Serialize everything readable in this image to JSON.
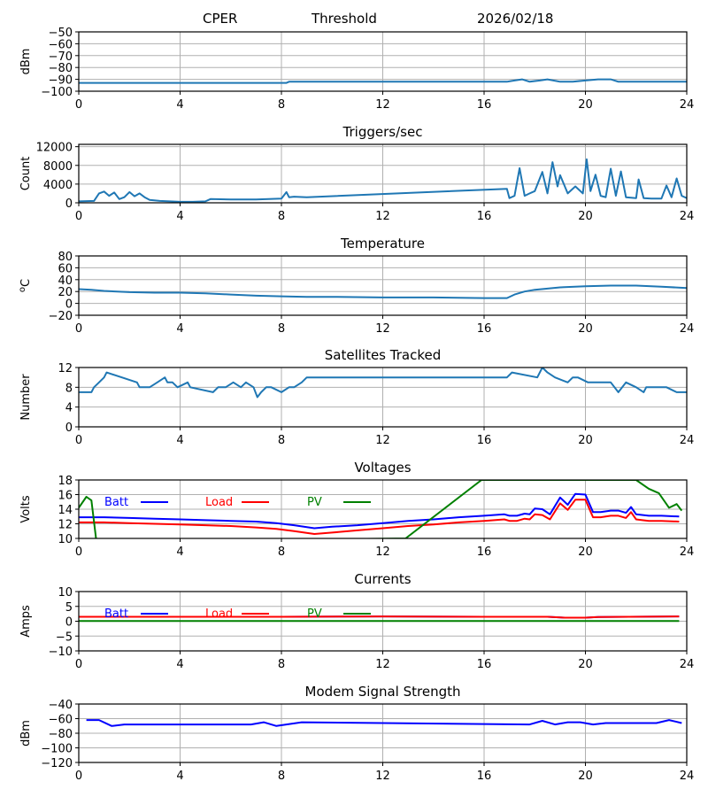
{
  "header": {
    "station": "CPER",
    "mode": "Threshold",
    "date": "2026/02/18"
  },
  "colors": {
    "default": "#1f77b4",
    "batt": "#0000ff",
    "load": "#ff0000",
    "pv": "#008000",
    "grid": "#b0b0b0"
  },
  "chart_data": [
    {
      "type": "line",
      "title": "",
      "xlabel": "",
      "ylabel": "dBm",
      "xlim": [
        0,
        24
      ],
      "ylim": [
        -100,
        -50
      ],
      "grid": true,
      "xticks": [
        "0",
        "4",
        "8",
        "12",
        "16",
        "20",
        "24"
      ],
      "yticks": [
        "-100",
        "-90",
        "-80",
        "-70",
        "-60",
        "-50"
      ],
      "series": [
        {
          "name": "Threshold",
          "color": "#1f77b4",
          "x": [
            0,
            8.2,
            8.3,
            8.5,
            16.9,
            17.2,
            17.5,
            17.8,
            18.2,
            18.5,
            19.0,
            19.5,
            20.0,
            20.5,
            21.0,
            21.3,
            24
          ],
          "y": [
            -93,
            -93,
            -92,
            -92,
            -92,
            -91,
            -90,
            -92,
            -91,
            -90,
            -92,
            -92,
            -91,
            -90,
            -90,
            -92,
            -92
          ]
        }
      ]
    },
    {
      "type": "line",
      "title": "Triggers/sec",
      "xlabel": "",
      "ylabel": "Count",
      "xlim": [
        0,
        24
      ],
      "ylim": [
        0,
        12500
      ],
      "grid": true,
      "xticks": [
        "0",
        "4",
        "8",
        "12",
        "16",
        "20",
        "24"
      ],
      "yticks": [
        "0",
        "4000",
        "8000",
        "12000"
      ],
      "series": [
        {
          "name": "Triggers",
          "color": "#1f77b4",
          "x": [
            0,
            0.6,
            0.8,
            1.0,
            1.2,
            1.4,
            1.6,
            1.8,
            2.0,
            2.2,
            2.4,
            2.6,
            2.8,
            3.2,
            3.6,
            4.0,
            4.5,
            5.0,
            5.2,
            6.0,
            7.0,
            8.0,
            8.2,
            8.3,
            8.5,
            9.0,
            16.9,
            17.0,
            17.2,
            17.4,
            17.6,
            17.8,
            18.0,
            18.3,
            18.5,
            18.7,
            18.9,
            19.0,
            19.3,
            19.6,
            19.9,
            20.05,
            20.2,
            20.4,
            20.6,
            20.8,
            21.0,
            21.2,
            21.4,
            21.6,
            21.8,
            22.0,
            22.1,
            22.3,
            22.6,
            23.0,
            23.2,
            23.4,
            23.6,
            23.8,
            24
          ],
          "y": [
            300,
            400,
            2000,
            2400,
            1500,
            2200,
            800,
            1200,
            2300,
            1400,
            2000,
            1200,
            600,
            400,
            300,
            200,
            200,
            300,
            800,
            700,
            700,
            900,
            2300,
            1200,
            1300,
            1200,
            3000,
            1000,
            1500,
            7400,
            1500,
            2000,
            2500,
            6600,
            2000,
            8700,
            3500,
            5900,
            2000,
            3500,
            2000,
            9300,
            2500,
            6000,
            1500,
            1200,
            7300,
            1500,
            6700,
            1200,
            1100,
            1000,
            5000,
            1000,
            900,
            900,
            3700,
            1200,
            5200,
            1500,
            1000
          ]
        }
      ]
    },
    {
      "type": "line",
      "title": "Temperature",
      "xlabel": "",
      "ylabel": "oC",
      "xlim": [
        0,
        24
      ],
      "ylim": [
        -20,
        80
      ],
      "grid": true,
      "xticks": [
        "0",
        "4",
        "8",
        "12",
        "16",
        "20",
        "24"
      ],
      "yticks": [
        "-20",
        "0",
        "20",
        "40",
        "60",
        "80"
      ],
      "series": [
        {
          "name": "Temperature",
          "color": "#1f77b4",
          "x": [
            0,
            0.5,
            1,
            2,
            3,
            4,
            5,
            6,
            7,
            8,
            9,
            10,
            12,
            14,
            16,
            16.9,
            17.2,
            17.6,
            18,
            18.5,
            19,
            20,
            21,
            22,
            23,
            24
          ],
          "y": [
            24,
            23,
            21,
            19,
            18,
            18,
            17,
            15,
            13,
            12,
            11,
            11,
            10,
            10,
            9,
            9,
            15,
            20,
            23,
            25,
            27,
            29,
            30,
            30,
            28,
            26
          ]
        }
      ]
    },
    {
      "type": "line",
      "title": "Satellites Tracked",
      "xlabel": "",
      "ylabel": "Number",
      "xlim": [
        0,
        24
      ],
      "ylim": [
        0,
        12
      ],
      "grid": true,
      "xticks": [
        "0",
        "4",
        "8",
        "12",
        "16",
        "20",
        "24"
      ],
      "yticks": [
        "0",
        "4",
        "8",
        "12"
      ],
      "series": [
        {
          "name": "Satellites",
          "color": "#1f77b4",
          "x": [
            0,
            0.5,
            0.6,
            0.8,
            1.0,
            1.1,
            1.7,
            2.3,
            2.4,
            2.8,
            3.1,
            3.4,
            3.5,
            3.7,
            3.9,
            4.3,
            4.4,
            5.3,
            5.5,
            5.8,
            6.1,
            6.4,
            6.6,
            6.9,
            7.05,
            7.2,
            7.4,
            7.6,
            8.0,
            8.3,
            8.5,
            8.8,
            9.0,
            16.9,
            17.1,
            18.1,
            18.3,
            18.5,
            18.8,
            19.3,
            19.5,
            19.7,
            20.1,
            21.0,
            21.3,
            21.6,
            22.0,
            22.3,
            22.4,
            23.2,
            23.6,
            24
          ],
          "y": [
            7,
            7,
            8,
            9,
            10,
            11,
            10,
            9,
            8,
            8,
            9,
            10,
            9,
            9,
            8,
            9,
            8,
            7,
            8,
            8,
            9,
            8,
            9,
            8,
            6,
            7,
            8,
            8,
            7,
            8,
            8,
            9,
            10,
            10,
            11,
            10,
            12,
            11,
            10,
            9,
            10,
            10,
            9,
            9,
            7,
            9,
            8,
            7,
            8,
            8,
            7,
            7
          ]
        }
      ]
    },
    {
      "type": "line",
      "title": "Voltages",
      "xlabel": "",
      "ylabel": "Volts",
      "xlim": [
        0,
        24
      ],
      "ylim": [
        10,
        18
      ],
      "grid": true,
      "xticks": [
        "0",
        "4",
        "8",
        "12",
        "16",
        "20",
        "24"
      ],
      "yticks": [
        "10",
        "12",
        "14",
        "16",
        "18"
      ],
      "legend": {
        "placement": "top-left",
        "entries": [
          "Batt",
          "Load",
          "PV"
        ]
      },
      "series": [
        {
          "name": "Batt",
          "color": "#0000ff",
          "x": [
            0,
            1,
            2,
            3,
            4,
            5,
            6,
            7,
            7.8,
            8.5,
            9.3,
            10,
            11,
            12,
            13,
            14,
            15,
            16,
            16.8,
            17.0,
            17.3,
            17.6,
            17.8,
            18.0,
            18.3,
            18.6,
            19.0,
            19.3,
            19.6,
            20.0,
            20.3,
            20.6,
            21.0,
            21.3,
            21.6,
            21.8,
            22.0,
            22.5,
            23,
            23.7
          ],
          "y": [
            12.9,
            12.9,
            12.8,
            12.7,
            12.6,
            12.5,
            12.4,
            12.3,
            12.1,
            11.8,
            11.4,
            11.6,
            11.8,
            12.1,
            12.4,
            12.6,
            12.9,
            13.1,
            13.3,
            13.1,
            13.1,
            13.4,
            13.3,
            14.1,
            14.0,
            13.3,
            15.6,
            14.6,
            16.1,
            16.0,
            13.6,
            13.6,
            13.8,
            13.8,
            13.5,
            14.3,
            13.3,
            13.1,
            13.1,
            13.0
          ]
        },
        {
          "name": "Load",
          "color": "#ff0000",
          "x": [
            0,
            1,
            2,
            3,
            4,
            5,
            6,
            7,
            7.8,
            8.5,
            9.3,
            10,
            11,
            12,
            13,
            14,
            15,
            16,
            16.8,
            17.0,
            17.3,
            17.6,
            17.8,
            18.0,
            18.3,
            18.6,
            19.0,
            19.3,
            19.6,
            20.0,
            20.3,
            20.6,
            21.0,
            21.3,
            21.6,
            21.8,
            22.0,
            22.5,
            23,
            23.7
          ],
          "y": [
            12.2,
            12.2,
            12.1,
            12.0,
            11.9,
            11.8,
            11.7,
            11.5,
            11.3,
            11.0,
            10.6,
            10.8,
            11.1,
            11.4,
            11.7,
            11.9,
            12.2,
            12.4,
            12.6,
            12.4,
            12.4,
            12.7,
            12.6,
            13.3,
            13.2,
            12.6,
            14.8,
            13.9,
            15.3,
            15.3,
            12.9,
            12.9,
            13.1,
            13.1,
            12.8,
            13.6,
            12.6,
            12.4,
            12.4,
            12.3
          ]
        },
        {
          "name": "PV",
          "color": "#008000",
          "x": [
            0,
            0.3,
            0.5,
            0.7,
            12.9,
            15.9,
            22.0,
            22.5,
            22.9,
            23.3,
            23.6,
            23.8
          ],
          "y": [
            14.2,
            15.7,
            15.2,
            9.5,
            10.0,
            18.0,
            18.0,
            16.8,
            16.2,
            14.2,
            14.7,
            13.8
          ]
        }
      ]
    },
    {
      "type": "line",
      "title": "Currents",
      "xlabel": "",
      "ylabel": "Amps",
      "xlim": [
        0,
        24
      ],
      "ylim": [
        -10,
        10
      ],
      "grid": true,
      "xticks": [
        "0",
        "4",
        "8",
        "12",
        "16",
        "20",
        "24"
      ],
      "yticks": [
        "-10",
        "-5",
        "0",
        "5",
        "10"
      ],
      "legend": {
        "placement": "top-left",
        "entries": [
          "Batt",
          "Load",
          "PV"
        ]
      },
      "series": [
        {
          "name": "Batt",
          "color": "#0000ff",
          "x": [
            0,
            4,
            8,
            12,
            16,
            18.5,
            19.2,
            20,
            20.5,
            23.7
          ],
          "y": [
            1.5,
            1.5,
            1.5,
            1.6,
            1.5,
            1.5,
            1.2,
            1.2,
            1.4,
            1.6
          ]
        },
        {
          "name": "Load",
          "color": "#ff0000",
          "x": [
            0,
            4,
            8,
            12,
            16,
            18.5,
            19.2,
            20,
            20.5,
            23.7
          ],
          "y": [
            1.5,
            1.5,
            1.5,
            1.6,
            1.5,
            1.5,
            1.2,
            1.2,
            1.4,
            1.6
          ]
        },
        {
          "name": "PV",
          "color": "#008000",
          "x": [
            0,
            23.7
          ],
          "y": [
            0.1,
            0.1
          ]
        }
      ]
    },
    {
      "type": "line",
      "title": "Modem Signal Strength",
      "xlabel": "",
      "ylabel": "dBm",
      "xlim": [
        0,
        24
      ],
      "ylim": [
        -120,
        -40
      ],
      "grid": true,
      "xticks": [
        "0",
        "4",
        "8",
        "12",
        "16",
        "20",
        "24"
      ],
      "yticks": [
        "-120",
        "-100",
        "-80",
        "-60",
        "-40"
      ],
      "series": [
        {
          "name": "Modem",
          "color": "#0000ff",
          "x": [
            0.3,
            0.8,
            1.3,
            1.8,
            6.8,
            7.3,
            7.8,
            8.8,
            17.8,
            18.3,
            18.8,
            19.3,
            19.8,
            20.3,
            20.8,
            22.8,
            23.3,
            23.8
          ],
          "y": [
            -62,
            -62,
            -70,
            -68,
            -68,
            -65,
            -70,
            -65,
            -68,
            -63,
            -68,
            -65,
            -65,
            -68,
            -66,
            -66,
            -62,
            -66
          ]
        }
      ]
    }
  ]
}
